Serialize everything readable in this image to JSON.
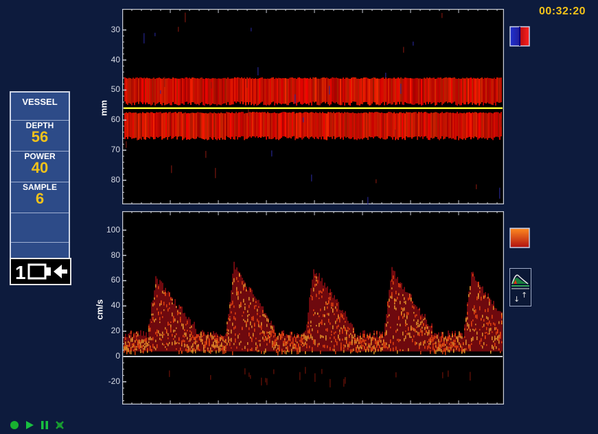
{
  "clock": "00:32:20",
  "panel": {
    "vessel": "VESSEL",
    "depth_label": "DEPTH",
    "depth_value": "56",
    "power_label": "POWER",
    "power_value": "40",
    "sample_label": "SAMPLE",
    "sample_value": "6",
    "probe_number": "1"
  },
  "mmode": {
    "axis_label": "mm",
    "ticks": [
      "30",
      "40",
      "50",
      "60",
      "70",
      "80"
    ],
    "tick_values": [
      30,
      40,
      50,
      60,
      70,
      80
    ],
    "y_range": [
      23,
      88
    ],
    "gate_depth": 56,
    "vessel_band_upper": [
      46,
      54.5
    ],
    "vessel_band_lower": [
      57.5,
      66
    ]
  },
  "spectrum": {
    "axis_label": "cm/s",
    "ticks": [
      "100",
      "80",
      "60",
      "40",
      "20",
      "0",
      "-20"
    ],
    "tick_values": [
      100,
      80,
      60,
      40,
      20,
      0,
      -20
    ],
    "y_range": [
      -38,
      115
    ],
    "peaks": [
      62,
      72,
      70,
      68,
      66
    ],
    "baseline": 0
  },
  "colors": {
    "background": "#0d1b3d",
    "clock": "#f2c21a",
    "gate_line": "#ffff33",
    "flow_red": "#ff1a00",
    "spectrum_orange": "#ffa020"
  },
  "icons": {
    "mmode_color_scale": "color-scale-red-blue-icon",
    "spectrum_color_scale": "color-scale-orange-icon",
    "envelope": "envelope-trace-icon",
    "playback": [
      "record-icon",
      "play-icon",
      "pause-icon",
      "stop-icon"
    ]
  }
}
